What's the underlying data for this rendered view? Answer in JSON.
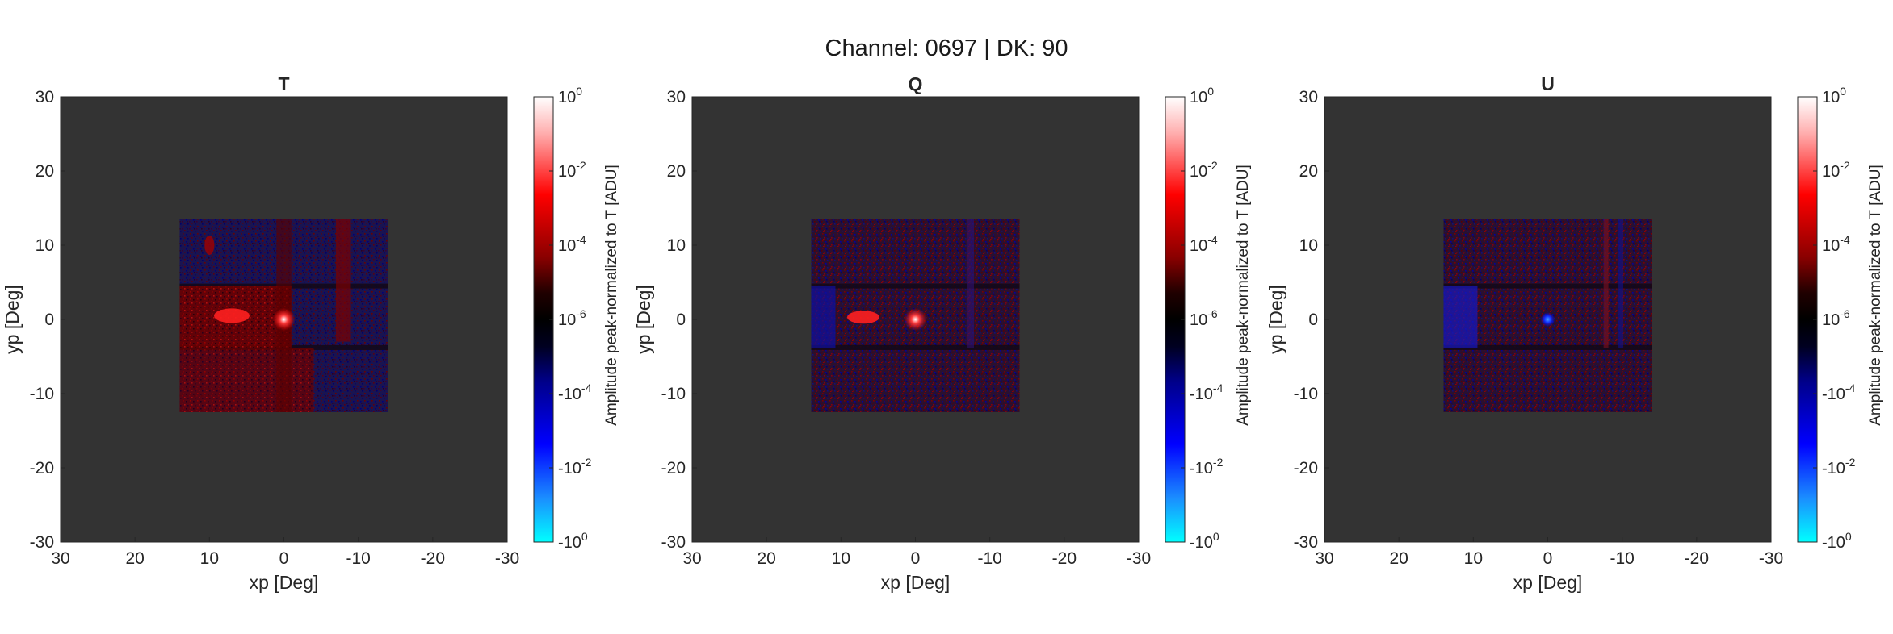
{
  "figure": {
    "title": "Channel: 0697 | DK: 90"
  },
  "chart_data": [
    {
      "type": "heatmap",
      "title": "T",
      "xlabel": "xp [Deg]",
      "ylabel": "yp [Deg]",
      "xlim": [
        30,
        -30
      ],
      "ylim": [
        -30,
        30
      ],
      "x_ticks": [
        "30",
        "20",
        "10",
        "0",
        "-10",
        "-20",
        "-30"
      ],
      "y_ticks": [
        "30",
        "20",
        "10",
        "0",
        "-10",
        "-20",
        "-30"
      ],
      "background_color": "#333333",
      "data_extent_deg": {
        "x": [
          -14,
          14
        ],
        "y": [
          -12.5,
          13.5
        ]
      },
      "peak_location_deg": [
        0,
        0
      ],
      "colorbar": {
        "label": "Amplitude peak-normalized to T [ADU]",
        "scale": "symmetric-log",
        "tick_bases": [
          "10",
          "10",
          "10",
          "10",
          "-10",
          "-10",
          "-10"
        ],
        "tick_exponents": [
          "0",
          "-2",
          "-4",
          "-6",
          "-4",
          "-2",
          "0"
        ]
      },
      "dominant_sign": "positive"
    },
    {
      "type": "heatmap",
      "title": "Q",
      "xlabel": "xp [Deg]",
      "ylabel": "yp [Deg]",
      "xlim": [
        30,
        -30
      ],
      "ylim": [
        -30,
        30
      ],
      "x_ticks": [
        "30",
        "20",
        "10",
        "0",
        "-10",
        "-20",
        "-30"
      ],
      "y_ticks": [
        "30",
        "20",
        "10",
        "0",
        "-10",
        "-20",
        "-30"
      ],
      "background_color": "#333333",
      "data_extent_deg": {
        "x": [
          -14,
          14
        ],
        "y": [
          -12.5,
          13.5
        ]
      },
      "peak_location_deg": [
        0,
        0
      ],
      "colorbar": {
        "label": "Amplitude peak-normalized to T [ADU]",
        "scale": "symmetric-log",
        "tick_bases": [
          "10",
          "10",
          "10",
          "10",
          "-10",
          "-10",
          "-10"
        ],
        "tick_exponents": [
          "0",
          "-2",
          "-4",
          "-6",
          "-4",
          "-2",
          "0"
        ]
      },
      "dominant_sign": "mixed"
    },
    {
      "type": "heatmap",
      "title": "U",
      "xlabel": "xp [Deg]",
      "ylabel": "yp [Deg]",
      "xlim": [
        30,
        -30
      ],
      "ylim": [
        -30,
        30
      ],
      "x_ticks": [
        "30",
        "20",
        "10",
        "0",
        "-10",
        "-20",
        "-30"
      ],
      "y_ticks": [
        "30",
        "20",
        "10",
        "0",
        "-10",
        "-20",
        "-30"
      ],
      "background_color": "#333333",
      "data_extent_deg": {
        "x": [
          -14,
          14
        ],
        "y": [
          -12.5,
          13.5
        ]
      },
      "peak_location_deg": [
        0,
        0
      ],
      "colorbar": {
        "label": "Amplitude peak-normalized to T [ADU]",
        "scale": "symmetric-log",
        "tick_bases": [
          "10",
          "10",
          "10",
          "10",
          "-10",
          "-10",
          "-10"
        ],
        "tick_exponents": [
          "0",
          "-2",
          "-4",
          "-6",
          "-4",
          "-2",
          "0"
        ]
      },
      "dominant_sign": "negative-center"
    }
  ]
}
